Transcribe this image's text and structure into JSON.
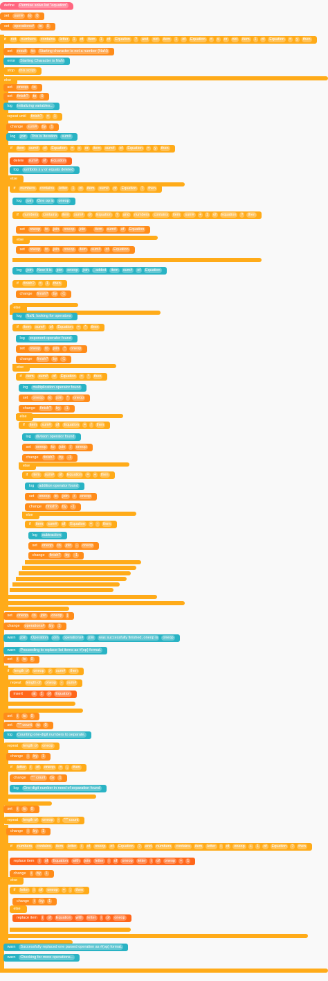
{
  "blocks": [
    {
      "parts": [
        "define",
        "Permise solve list \"equation\""
      ]
    },
    {
      "parts": [
        "set",
        "sum#",
        "to",
        "0"
      ]
    },
    {
      "parts": [
        "set",
        "operations#",
        "to",
        "0"
      ]
    },
    {
      "parts": [
        "if",
        "not",
        "numbers",
        "contains",
        "letter",
        "1",
        "of",
        "item",
        "1",
        "of",
        "Equation",
        "?",
        "and",
        "not",
        "item",
        "1",
        "of",
        "Equation",
        "=",
        "x",
        "or",
        "not",
        "item",
        "1",
        "of",
        "Equation",
        "=",
        "y",
        "then"
      ]
    },
    {
      "parts": [
        "set",
        "result",
        "to",
        "Starting character is not a number (NaN)"
      ]
    },
    {
      "parts": [
        "error",
        "Starting Character is NaN"
      ]
    },
    {
      "parts": [
        "stop",
        "this script"
      ]
    },
    {
      "parts": [
        "else"
      ]
    },
    {
      "parts": [
        "set",
        "oneop",
        "to"
      ]
    },
    {
      "parts": [
        "set",
        "finish?",
        "to",
        "0"
      ]
    },
    {
      "parts": [
        "log",
        "Initializing variables..."
      ]
    },
    {
      "parts": [
        "repeat until",
        "finish?",
        "=",
        "1"
      ]
    },
    {
      "parts": [
        "change",
        "sum#",
        "by",
        "1"
      ]
    },
    {
      "parts": [
        "log",
        "join",
        "This is Iteration",
        "sum#"
      ]
    },
    {
      "parts": [
        "if",
        "item",
        "sum#",
        "of",
        "Equation",
        "=",
        "x",
        "or",
        "item",
        "sum#",
        "of",
        "Equation",
        "=",
        "y",
        "then"
      ]
    },
    {
      "parts": [
        "delete",
        "sum#",
        "of",
        "Equation"
      ]
    },
    {
      "parts": [
        "log",
        "symbols x y or equals deleted"
      ]
    },
    {
      "parts": [
        "else"
      ]
    },
    {
      "parts": [
        "if",
        "numbers",
        "contains",
        "letter",
        "1",
        "of",
        "item",
        "sum#",
        "of",
        "Equation",
        "?",
        "then"
      ]
    },
    {
      "parts": [
        "log",
        "join",
        "One op is",
        "oneop"
      ]
    },
    {
      "parts": [
        "if",
        "numbers",
        "contains",
        "item",
        "sum#",
        "of",
        "Equation",
        "?",
        "and",
        "numbers",
        "contains",
        "item",
        "sum#",
        "+",
        "1",
        "of",
        "Equation",
        "?",
        "then"
      ]
    },
    {
      "parts": [
        "set",
        "oneop",
        "to",
        "join",
        "oneop",
        "join",
        "",
        "item",
        "sum#",
        "of",
        "Equation"
      ]
    },
    {
      "parts": [
        "else"
      ]
    },
    {
      "parts": [
        "set",
        "oneop",
        "to",
        "join",
        "oneop",
        "item",
        "sum#",
        "of",
        "Equation"
      ]
    },
    {
      "parts": [
        "log",
        "join",
        "Now it is",
        "join",
        "oneop",
        "join",
        ", added",
        "item",
        "sum#",
        "of",
        "Equation"
      ]
    },
    {
      "parts": [
        "if",
        "finish?",
        "=",
        "1",
        "then"
      ]
    },
    {
      "parts": [
        "change",
        "finish?",
        "by",
        "-1"
      ]
    },
    {
      "parts": [
        "else"
      ]
    },
    {
      "parts": [
        "log",
        "NaN, looking for operators"
      ]
    },
    {
      "parts": [
        "if",
        "item",
        "sum#",
        "of",
        "Equation",
        "=",
        "^",
        "then"
      ]
    },
    {
      "parts": [
        "log",
        "exponent operator found"
      ]
    },
    {
      "parts": [
        "set",
        "oneop",
        "to",
        "join",
        "^",
        "oneop"
      ]
    },
    {
      "parts": [
        "change",
        "finish?",
        "by",
        "-1"
      ]
    },
    {
      "parts": [
        "else"
      ]
    },
    {
      "parts": [
        "if",
        "item",
        "sum#",
        "of",
        "Equation",
        "=",
        "*",
        "then"
      ]
    },
    {
      "parts": [
        "log",
        "multiplication operator found"
      ]
    },
    {
      "parts": [
        "set",
        "oneop",
        "to",
        "join",
        "*",
        "oneop"
      ]
    },
    {
      "parts": [
        "change",
        "finish?",
        "by",
        "-1"
      ]
    },
    {
      "parts": [
        "else"
      ]
    },
    {
      "parts": [
        "if",
        "item",
        "sum#",
        "of",
        "Equation",
        "=",
        "/",
        "then"
      ]
    },
    {
      "parts": [
        "log",
        "division operator found"
      ]
    },
    {
      "parts": [
        "set",
        "oneop",
        "to",
        "join",
        "/",
        "oneop"
      ]
    },
    {
      "parts": [
        "change",
        "finish?",
        "by",
        "-1"
      ]
    },
    {
      "parts": [
        "else"
      ]
    },
    {
      "parts": [
        "if",
        "item",
        "sum#",
        "of",
        "Equation",
        "=",
        "+",
        "then"
      ]
    },
    {
      "parts": [
        "log",
        "addition operator found"
      ]
    },
    {
      "parts": [
        "set",
        "oneop",
        "to",
        "join",
        "+",
        "oneop"
      ]
    },
    {
      "parts": [
        "change",
        "finish?",
        "by",
        "-1"
      ]
    },
    {
      "parts": [
        "else"
      ]
    },
    {
      "parts": [
        "if",
        "item",
        "sum#",
        "of",
        "Equation",
        "=",
        "-",
        "then"
      ]
    },
    {
      "parts": [
        "log",
        "subtraction"
      ]
    },
    {
      "parts": [
        "set",
        "oneop",
        "to",
        "join",
        "-",
        "oneop"
      ]
    },
    {
      "parts": [
        "change",
        "finish?",
        "by",
        "-1"
      ]
    },
    {
      "parts": [
        "set",
        "oneop",
        "to",
        "join",
        "oneop",
        ")"
      ]
    },
    {
      "parts": [
        "change",
        "operations#",
        "by",
        "1"
      ]
    },
    {
      "parts": [
        "warn",
        "join",
        "Operation",
        "join",
        "operations#",
        "join",
        "was successfully finished, oneop is",
        "oneop"
      ]
    },
    {
      "parts": [
        "warn",
        "Proceeding to replace list items as #(op) format."
      ]
    },
    {
      "parts": [
        "set",
        "i",
        "to",
        "0"
      ]
    },
    {
      "parts": [
        "if",
        "length of",
        "oneop",
        ">",
        "sum#",
        "then"
      ]
    },
    {
      "parts": [
        "repeat",
        "length of",
        "oneop",
        "-",
        "sum#"
      ]
    },
    {
      "parts": [
        "insert",
        "",
        "at",
        "1",
        "of",
        "Equation"
      ]
    },
    {
      "parts": [
        "set",
        "i",
        "to",
        "0"
      ]
    },
    {
      "parts": [
        "set",
        "\"*\" count",
        "to",
        "0"
      ]
    },
    {
      "parts": [
        "log",
        "Counting one-digit numbers to separate."
      ]
    },
    {
      "parts": [
        "repeat",
        "length of",
        "oneop"
      ]
    },
    {
      "parts": [
        "change",
        "i",
        "by",
        "1"
      ]
    },
    {
      "parts": [
        "if",
        "letter",
        "i",
        "of",
        "oneop",
        "=",
        ",",
        "then"
      ]
    },
    {
      "parts": [
        "change",
        "\"*\" count",
        "by",
        "1"
      ]
    },
    {
      "parts": [
        "log",
        "One-digit number in need of separation found"
      ]
    },
    {
      "parts": [
        "set",
        "i",
        "to",
        "0"
      ]
    },
    {
      "parts": [
        "repeat",
        "length of",
        "oneop",
        "-",
        "\"*\" count"
      ]
    },
    {
      "parts": [
        "change",
        "i",
        "by",
        "1"
      ]
    },
    {
      "parts": [
        "if",
        "numbers",
        "contains",
        "item",
        "letter",
        "i",
        "of",
        "oneop",
        "of",
        "Equation",
        "?",
        "and",
        "numbers",
        "contains",
        "item",
        "letter",
        "i",
        "of",
        "oneop",
        "+",
        "1",
        "of",
        "Equation",
        "?",
        "then"
      ]
    },
    {
      "parts": [
        "replace item",
        "i",
        "of",
        "Equation",
        "with",
        "join",
        "letter",
        "i",
        "of",
        "oneop",
        "letter",
        "i",
        "of",
        "oneop",
        "+",
        "1"
      ]
    },
    {
      "parts": [
        "change",
        "i",
        "by",
        "1"
      ]
    },
    {
      "parts": [
        "else"
      ]
    },
    {
      "parts": [
        "if",
        "letter",
        "i",
        "of",
        "oneop",
        "=",
        ",",
        "then"
      ]
    },
    {
      "parts": [
        "change",
        "i",
        "by",
        "1"
      ]
    },
    {
      "parts": [
        "else"
      ]
    },
    {
      "parts": [
        "replace item",
        "i",
        "of",
        "Equation",
        "with",
        "letter",
        "i",
        "of",
        "oneop"
      ]
    },
    {
      "parts": [
        "warn",
        "Successfully replaced one parsed operation as #(op) format."
      ]
    },
    {
      "parts": [
        "warn",
        "Checking for more operations..."
      ]
    }
  ]
}
